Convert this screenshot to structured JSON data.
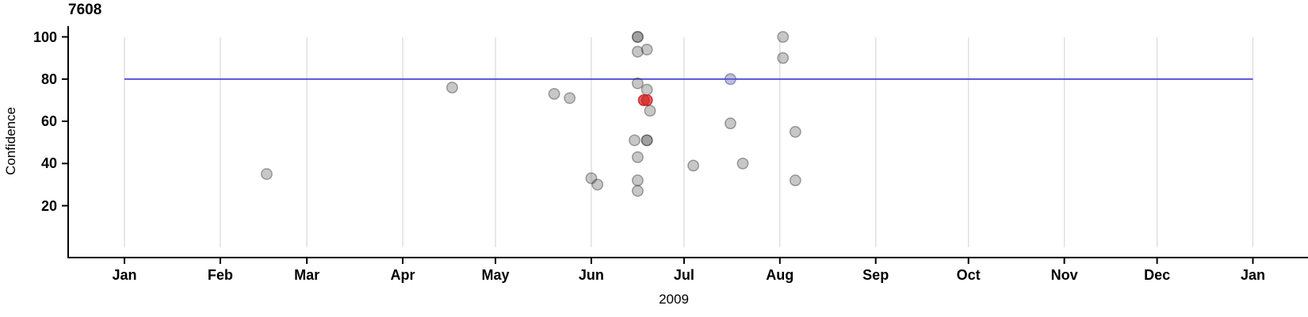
{
  "chart_data": {
    "type": "scatter",
    "title": "7608",
    "xlabel": "2009",
    "ylabel": "Confidence",
    "x_axis": {
      "tick_labels": [
        "Jan",
        "Feb",
        "Mar",
        "Apr",
        "May",
        "Jun",
        "Jul",
        "Aug",
        "Sep",
        "Oct",
        "Nov",
        "Dec",
        "Jan"
      ],
      "tick_days": [
        0,
        31,
        59,
        90,
        120,
        151,
        181,
        212,
        243,
        273,
        304,
        334,
        365
      ],
      "grid": true
    },
    "y_axis": {
      "ticks": [
        20,
        40,
        60,
        80,
        100
      ],
      "range": [
        0,
        105
      ]
    },
    "reference_line": {
      "value": 80,
      "span_days": [
        0,
        365
      ],
      "color": "#1414cc"
    },
    "colors": {
      "grid": "#dcdcdc",
      "axis": "#000000",
      "text": "#000000",
      "gray": {
        "fill": "rgba(84,84,84,0.33)",
        "stroke": "rgba(40,40,40,0.40)"
      },
      "red": {
        "fill": "rgba(215,40,40,0.72)",
        "stroke": "rgba(198,40,40,0.95)"
      },
      "violet": {
        "fill": "rgba(110,110,180,0.45)",
        "stroke": "rgba(80,80,140,0.55)"
      }
    },
    "points": [
      {
        "date": "Feb 16",
        "day": 46,
        "confidence": 35,
        "color": "gray"
      },
      {
        "date": "Apr 17",
        "day": 106,
        "confidence": 76,
        "color": "gray"
      },
      {
        "date": "May 20",
        "day": 139,
        "confidence": 73,
        "color": "gray"
      },
      {
        "date": "May 25",
        "day": 144,
        "confidence": 71,
        "color": "gray"
      },
      {
        "date": "Jun 1",
        "day": 151,
        "confidence": 33,
        "color": "gray"
      },
      {
        "date": "Jun 3",
        "day": 153,
        "confidence": 30,
        "color": "gray"
      },
      {
        "date": "Jun 16",
        "day": 166,
        "confidence": 100,
        "color": "gray"
      },
      {
        "date": "Jun 16",
        "day": 166,
        "confidence": 100,
        "color": "gray"
      },
      {
        "date": "Jun 16",
        "day": 166,
        "confidence": 93,
        "color": "gray"
      },
      {
        "date": "Jun 19",
        "day": 169,
        "confidence": 94,
        "color": "gray"
      },
      {
        "date": "Jun 16",
        "day": 166,
        "confidence": 78,
        "color": "gray"
      },
      {
        "date": "Jun 19",
        "day": 169,
        "confidence": 75,
        "color": "gray"
      },
      {
        "date": "Jun 18",
        "day": 168,
        "confidence": 70,
        "color": "red"
      },
      {
        "date": "Jun 19",
        "day": 169,
        "confidence": 70,
        "color": "red"
      },
      {
        "date": "Jun 20",
        "day": 170,
        "confidence": 65,
        "color": "gray"
      },
      {
        "date": "Jun 15",
        "day": 165,
        "confidence": 51,
        "color": "gray"
      },
      {
        "date": "Jun 19",
        "day": 169,
        "confidence": 51,
        "color": "gray"
      },
      {
        "date": "Jun 19",
        "day": 169,
        "confidence": 51,
        "color": "gray"
      },
      {
        "date": "Jun 16",
        "day": 166,
        "confidence": 43,
        "color": "gray"
      },
      {
        "date": "Jun 16",
        "day": 166,
        "confidence": 32,
        "color": "gray"
      },
      {
        "date": "Jun 16",
        "day": 166,
        "confidence": 27,
        "color": "gray"
      },
      {
        "date": "Jul 4",
        "day": 184,
        "confidence": 39,
        "color": "gray"
      },
      {
        "date": "Jul 16",
        "day": 196,
        "confidence": 80,
        "color": "violet"
      },
      {
        "date": "Jul 16",
        "day": 196,
        "confidence": 59,
        "color": "gray"
      },
      {
        "date": "Jul 20",
        "day": 200,
        "confidence": 40,
        "color": "gray"
      },
      {
        "date": "Aug 2",
        "day": 213,
        "confidence": 100,
        "color": "gray"
      },
      {
        "date": "Aug 2",
        "day": 213,
        "confidence": 90,
        "color": "gray"
      },
      {
        "date": "Aug 6",
        "day": 217,
        "confidence": 55,
        "color": "gray"
      },
      {
        "date": "Aug 6",
        "day": 217,
        "confidence": 32,
        "color": "gray"
      }
    ]
  }
}
